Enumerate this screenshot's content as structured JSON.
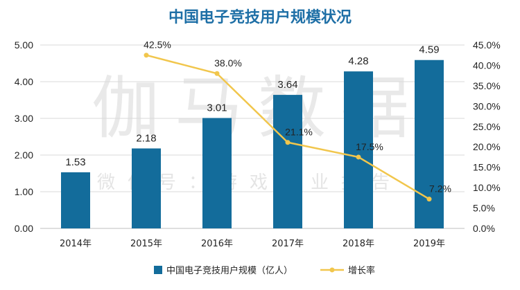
{
  "chart_data": {
    "type": "bar+line",
    "title": "中国电子竞技用户规模状况",
    "categories": [
      "2014年",
      "2015年",
      "2016年",
      "2017年",
      "2018年",
      "2019年"
    ],
    "series": [
      {
        "name": "中国电子竞技用户规模（亿人）",
        "kind": "bar",
        "axis": "left",
        "values": [
          1.53,
          2.18,
          3.01,
          3.64,
          4.28,
          4.59
        ],
        "labels": [
          "1.53",
          "2.18",
          "3.01",
          "3.64",
          "4.28",
          "4.59"
        ]
      },
      {
        "name": "增长率",
        "kind": "line",
        "axis": "right",
        "values": [
          null,
          42.5,
          38.0,
          21.1,
          17.5,
          7.2
        ],
        "labels": [
          "",
          "42.5%",
          "38.0%",
          "21.1%",
          "17.5%",
          "7.2%"
        ]
      }
    ],
    "left_axis": {
      "range": [
        0,
        5
      ],
      "ticks": [
        "0.00",
        "1.00",
        "2.00",
        "3.00",
        "4.00",
        "5.00"
      ]
    },
    "right_axis": {
      "range": [
        0,
        45
      ],
      "ticks": [
        "0.0%",
        "5.0%",
        "10.0%",
        "15.0%",
        "20.0%",
        "25.0%",
        "30.0%",
        "35.0%",
        "40.0%",
        "45.0%"
      ]
    },
    "gridlines": true,
    "legend_position": "bottom",
    "watermark": {
      "line1": "伽马数据",
      "line2": "微信号：游戏产业报告"
    }
  },
  "colors": {
    "title": "#1e6fa6",
    "bar": "#136c9b",
    "line": "#f1c64c",
    "grid": "#d9d9d9",
    "axis": "#bfbfbf"
  }
}
